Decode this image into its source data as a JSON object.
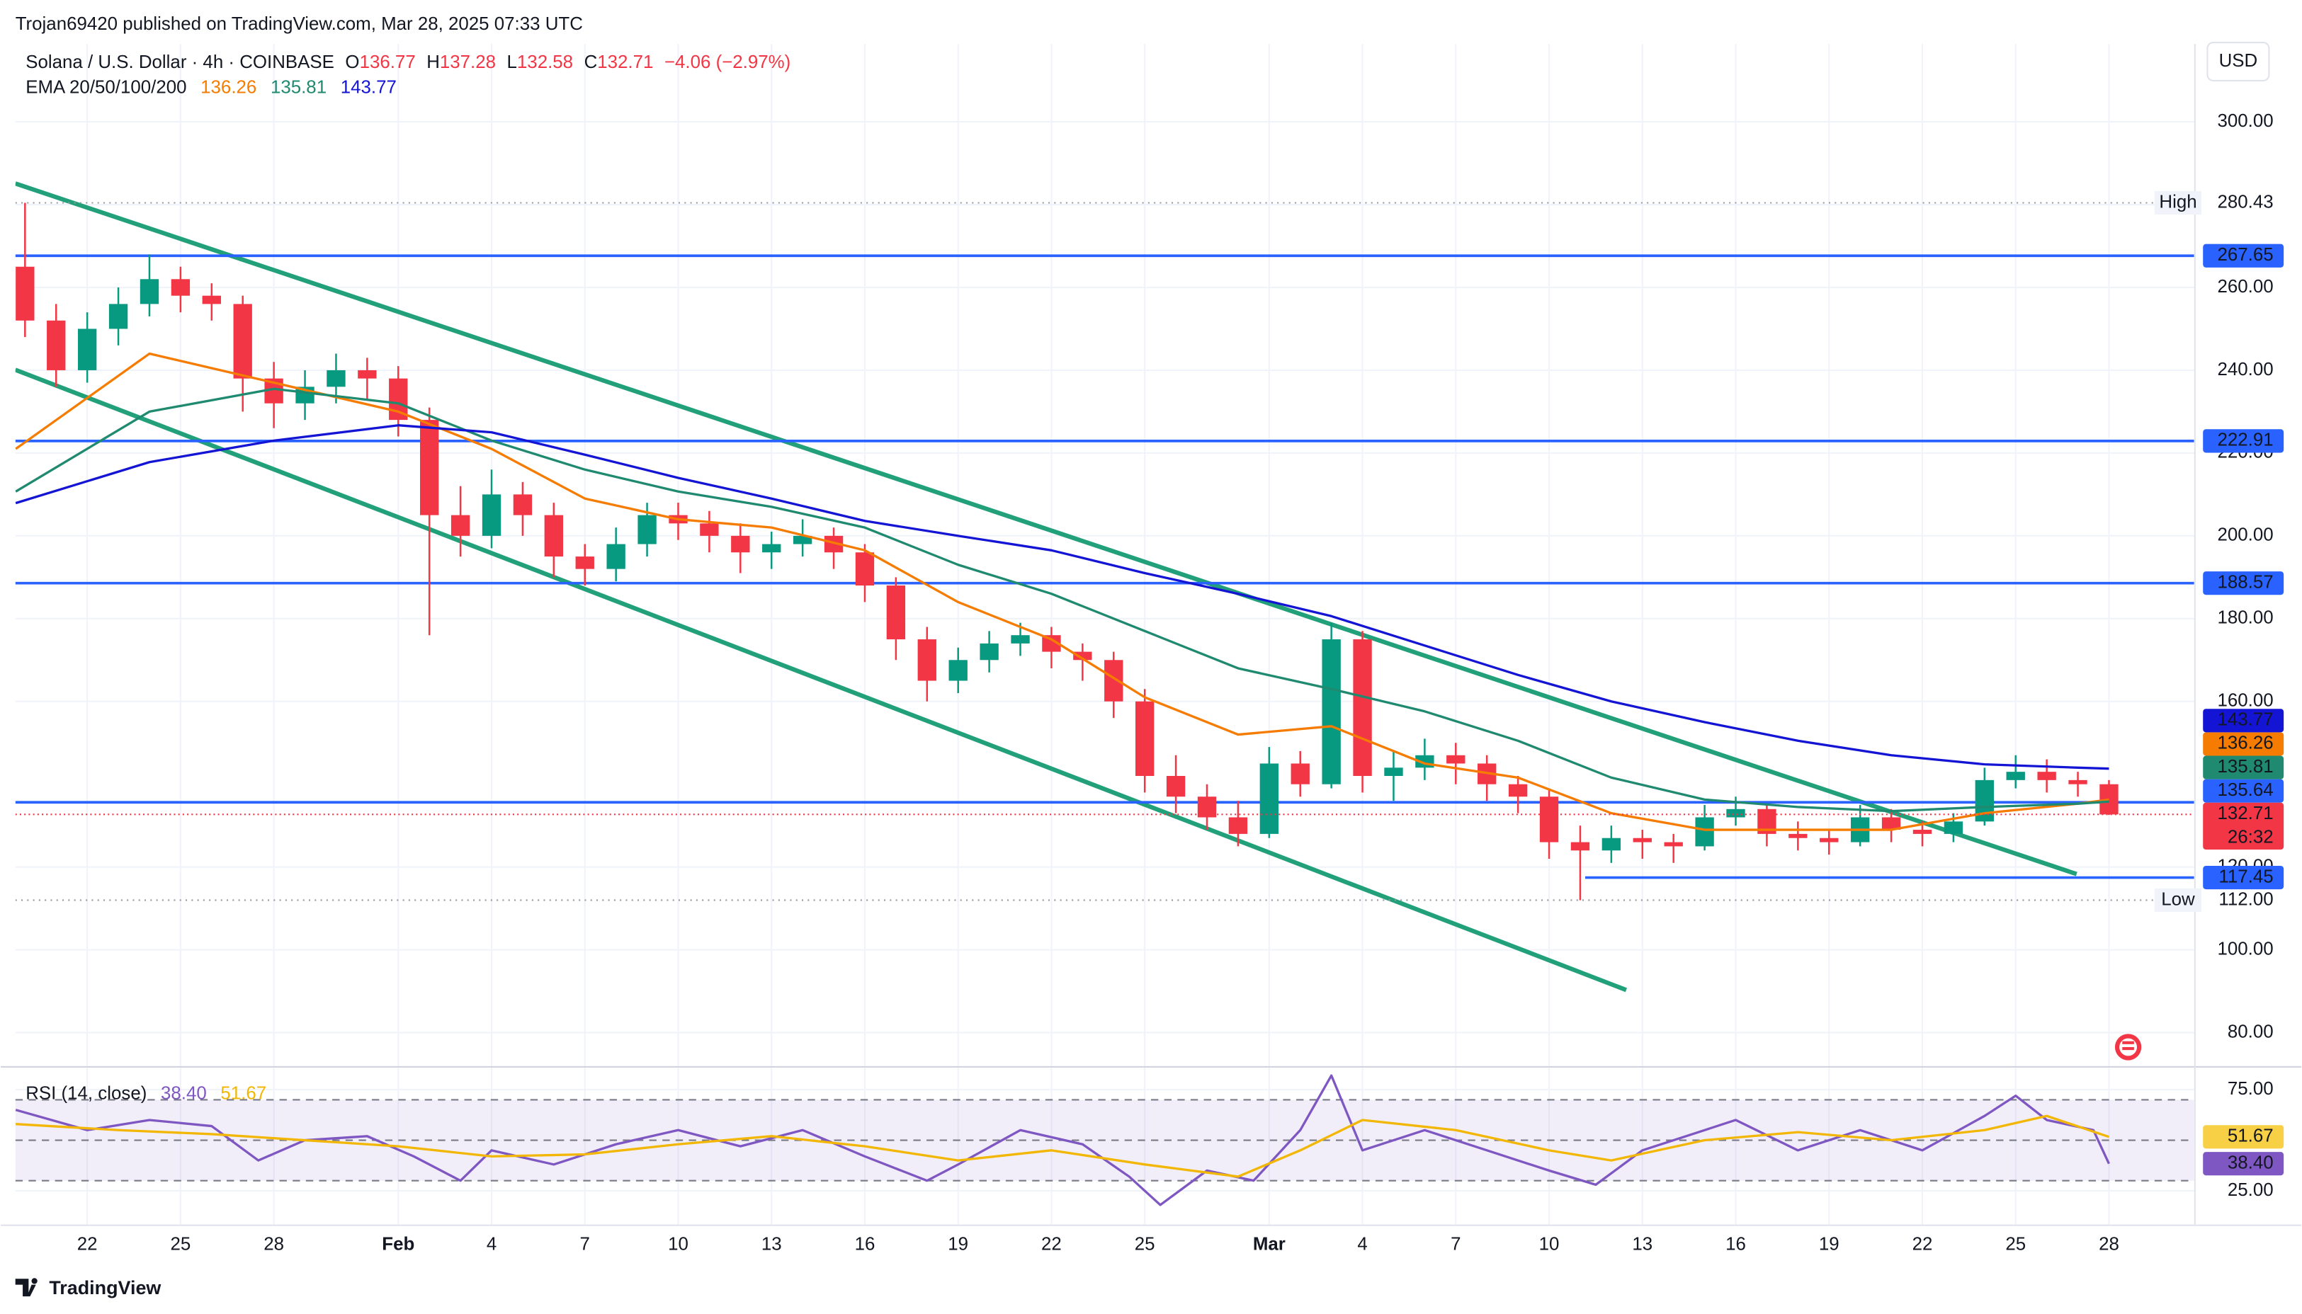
{
  "header": {
    "published": "Trojan69420 published on TradingView.com, Mar 28, 2025 07:33 UTC",
    "currency": "USD",
    "footer": "TradingView"
  },
  "legend": {
    "symbol": "Solana / U.S. Dollar · 4h · COINBASE",
    "o_label": "O",
    "open": 136.77,
    "h_label": "H",
    "high": 137.28,
    "l_label": "L",
    "low": 132.58,
    "c_label": "C",
    "close": 132.71,
    "change": "−4.06 (−2.97%)",
    "ema_label": "EMA 20/50/100/200",
    "rsi_label": "RSI (14, close)"
  },
  "chart_data": [
    {
      "type": "candlestick",
      "up_color": "#089981",
      "down_color": "#f23645",
      "grid": true,
      "x": [
        20,
        21,
        22,
        23,
        24,
        25,
        26,
        27,
        28,
        29,
        30,
        31,
        32,
        33,
        34,
        35,
        36,
        37,
        38,
        39,
        40,
        41,
        42,
        43,
        44,
        45,
        46,
        47,
        48,
        49,
        50,
        51,
        52,
        53,
        54,
        55,
        56,
        57,
        58,
        59,
        60,
        61,
        62,
        63,
        64,
        65,
        66,
        67,
        68,
        69,
        70,
        71,
        72,
        73,
        74,
        75,
        76,
        77,
        78,
        79,
        80,
        81,
        82,
        83,
        84,
        85,
        86,
        87
      ],
      "open": [
        265,
        252,
        240,
        250,
        256,
        262,
        258,
        256,
        238,
        232,
        236,
        240,
        238,
        228,
        205,
        200,
        210,
        205,
        195,
        192,
        198,
        205,
        203,
        200,
        196,
        198,
        200,
        196,
        188,
        175,
        165,
        170,
        174,
        176,
        172,
        170,
        160,
        142,
        137,
        132,
        128,
        145,
        140,
        175,
        142,
        144,
        147,
        145,
        140,
        137,
        126,
        124,
        127,
        126,
        125,
        132,
        134,
        128,
        127,
        126,
        132,
        129,
        128,
        131,
        141,
        143,
        141,
        140
      ],
      "high": [
        280.43,
        256,
        254,
        260,
        268,
        265,
        261,
        258,
        242,
        240,
        244,
        243,
        241,
        231,
        212,
        216,
        213,
        208,
        198,
        202,
        208,
        208,
        206,
        203,
        201,
        204,
        202,
        198,
        190,
        178,
        173,
        177,
        179,
        178,
        174,
        172,
        163,
        147,
        140,
        136,
        149,
        148,
        179,
        177,
        148,
        151,
        150,
        147,
        142,
        139,
        130,
        130,
        129,
        128,
        135,
        137,
        135,
        131,
        129,
        135,
        134,
        131,
        133,
        144,
        147,
        146,
        143,
        141
      ],
      "low": [
        248,
        236,
        237,
        246,
        253,
        254,
        252,
        230,
        226,
        228,
        232,
        233,
        224,
        176,
        195,
        197,
        200,
        190,
        188,
        189,
        195,
        199,
        196,
        191,
        192,
        195,
        192,
        184,
        170,
        160,
        162,
        167,
        171,
        168,
        165,
        156,
        138,
        133,
        129,
        125,
        127,
        137,
        139,
        138,
        136,
        141,
        140,
        136,
        133,
        122,
        112,
        121,
        122,
        121,
        124,
        130,
        125,
        124,
        123,
        125,
        126,
        125,
        126,
        130,
        139,
        138,
        137,
        132.58
      ],
      "close": [
        252,
        240,
        250,
        256,
        262,
        258,
        256,
        238,
        232,
        236,
        240,
        238,
        228,
        205,
        200,
        210,
        205,
        195,
        192,
        198,
        205,
        203,
        200,
        196,
        198,
        200,
        196,
        188,
        175,
        165,
        170,
        174,
        176,
        172,
        170,
        160,
        142,
        137,
        132,
        128,
        145,
        140,
        175,
        142,
        144,
        147,
        145,
        140,
        137,
        126,
        124,
        127,
        126,
        125,
        132,
        134,
        128,
        127,
        126,
        132,
        129,
        128,
        131,
        141,
        143,
        141,
        140,
        132.71
      ],
      "series": [
        {
          "color": "#f57c00",
          "x": [
            19.7,
            24,
            28,
            32,
            35,
            38,
            41,
            44,
            47,
            50,
            53,
            56,
            59,
            62,
            65,
            68,
            71,
            74,
            77,
            80,
            83,
            86,
            87
          ],
          "values": [
            221,
            244,
            237,
            230,
            221,
            209,
            204,
            202,
            196.5,
            184,
            175,
            161,
            152,
            154,
            145,
            141.6,
            133,
            129,
            129,
            129,
            133,
            135.3,
            136.26
          ]
        },
        {
          "color": "#1f8a70",
          "x": [
            19.7,
            24,
            28,
            32,
            35,
            38,
            41,
            44,
            47,
            50,
            53,
            56,
            59,
            62,
            65,
            68,
            71,
            74,
            77,
            80,
            83,
            86,
            87
          ],
          "values": [
            210.7,
            230,
            235.5,
            232,
            223,
            216,
            210.7,
            207,
            202,
            193,
            186,
            177,
            168,
            163,
            157.6,
            150.5,
            141.6,
            136.3,
            134.5,
            133.5,
            134.5,
            135.3,
            135.81
          ]
        },
        {
          "color": "#1414d4",
          "x": [
            19.7,
            24,
            28,
            32,
            35,
            38,
            41,
            44,
            47,
            50,
            53,
            56,
            59,
            62,
            65,
            68,
            71,
            74,
            77,
            80,
            83,
            86,
            87
          ],
          "values": [
            207.9,
            217.8,
            223,
            226.7,
            225,
            219.6,
            214,
            209,
            203.6,
            200,
            196.5,
            191,
            186,
            180.6,
            173.5,
            166.4,
            160,
            155,
            150.5,
            147,
            144.8,
            144,
            143.77
          ]
        }
      ],
      "hlines_color": "#2962ff",
      "hlines": [
        {
          "value": 267.65
        },
        {
          "value": 222.91
        },
        {
          "value": 188.57
        },
        {
          "value": 135.64
        },
        {
          "value": 117.45,
          "from": 70.16
        }
      ],
      "trendline_color": "#22a07a",
      "trendlines": [
        {
          "x": [
            19.69,
            85.96
          ],
          "values": [
            285.1,
            118.3
          ]
        },
        {
          "x": [
            19.69,
            71.48
          ],
          "values": [
            240.1,
            90.3
          ]
        }
      ],
      "markers": [
        {
          "name": "High",
          "value": 280.43,
          "label": "280.43"
        },
        {
          "name": "Low",
          "value": 112,
          "label": "112.00"
        }
      ],
      "countdown": "26:32",
      "xlim": [
        19.69,
        89.74
      ],
      "ylim": [
        71.9,
        318.8
      ],
      "xticks": [
        22,
        25,
        28,
        {
          "value": 32,
          "label": "Feb"
        },
        {
          "value": 35,
          "label": "4"
        },
        {
          "value": 38,
          "label": "7"
        },
        {
          "value": 41,
          "label": "10"
        },
        {
          "value": 44,
          "label": "13"
        },
        {
          "value": 47,
          "label": "16"
        },
        {
          "value": 50,
          "label": "19"
        },
        {
          "value": 53,
          "label": "22"
        },
        {
          "value": 56,
          "label": "25"
        },
        {
          "value": 60,
          "label": "Mar"
        },
        {
          "value": 63,
          "label": "4"
        },
        {
          "value": 66,
          "label": "7"
        },
        {
          "value": 69,
          "label": "10"
        },
        {
          "value": 72,
          "label": "13"
        },
        {
          "value": 75,
          "label": "16"
        },
        {
          "value": 78,
          "label": "19"
        },
        {
          "value": 81,
          "label": "22"
        },
        {
          "value": 84,
          "label": "25"
        },
        {
          "value": 87,
          "label": "28"
        }
      ],
      "yticks": [
        {
          "value": 80,
          "label": "80.00"
        },
        {
          "value": 100,
          "label": "100.00"
        },
        {
          "value": 120,
          "label": "120.00"
        },
        {
          "value": 160,
          "label": "160.00"
        },
        {
          "value": 180,
          "label": "180.00"
        },
        {
          "value": 200,
          "label": "200.00"
        },
        {
          "value": 220,
          "label": "220.00"
        },
        {
          "value": 240,
          "label": "240.00"
        },
        {
          "value": 260,
          "label": "260.00"
        },
        {
          "value": 280,
          "label": "280.00"
        },
        {
          "value": 300,
          "label": "300.00"
        }
      ]
    },
    {
      "type": "line",
      "grid": true,
      "series": [
        {
          "color": "#7e57c2",
          "x": [
            19.7,
            22,
            24,
            26,
            27.5,
            29,
            31,
            32.5,
            34,
            35,
            37,
            39,
            41,
            43,
            45,
            47,
            49,
            50,
            52,
            54,
            55.5,
            56.5,
            58,
            59.5,
            61,
            62,
            63,
            65,
            67,
            69,
            70.5,
            72,
            74,
            75,
            77,
            79,
            81,
            83,
            84,
            85,
            86.5,
            87
          ],
          "values": [
            65,
            55,
            60,
            57,
            40,
            50,
            52,
            42,
            30,
            45,
            38,
            48,
            55,
            47,
            55,
            42,
            30,
            38,
            55,
            48,
            32,
            18,
            35,
            30,
            55,
            82,
            45,
            55,
            45,
            35,
            28,
            45,
            55,
            60,
            45,
            55,
            45,
            62,
            72,
            60,
            55,
            38.4
          ]
        },
        {
          "color": "#f2b705",
          "x": [
            19.7,
            23,
            26,
            29,
            32,
            35,
            38,
            41,
            44,
            47,
            50,
            53,
            56,
            59,
            61,
            63,
            66,
            69,
            71,
            74,
            77,
            80,
            83,
            85,
            87
          ],
          "values": [
            58,
            55,
            53,
            50,
            47,
            42,
            43,
            48,
            52,
            47,
            40,
            45,
            38,
            32,
            45,
            60,
            55,
            45,
            40,
            50,
            54,
            50,
            55,
            62,
            51.67
          ]
        }
      ],
      "tags": [
        {
          "value": 51.67,
          "label": "51.67",
          "color": "#f7d046",
          "text_color": "#131722"
        },
        {
          "value": 38.4,
          "label": "38.40",
          "color": "#7e57c2",
          "text_color": "#ffffff"
        }
      ],
      "band": [
        30,
        70
      ],
      "midline": 50,
      "band_color": "#7e57c2",
      "xlim": [
        19.69,
        89.74
      ],
      "ylim": [
        8.3,
        85.9
      ],
      "yticks": [
        {
          "value": 25,
          "label": "25.00"
        },
        {
          "value": 75,
          "label": "75.00"
        }
      ]
    }
  ]
}
